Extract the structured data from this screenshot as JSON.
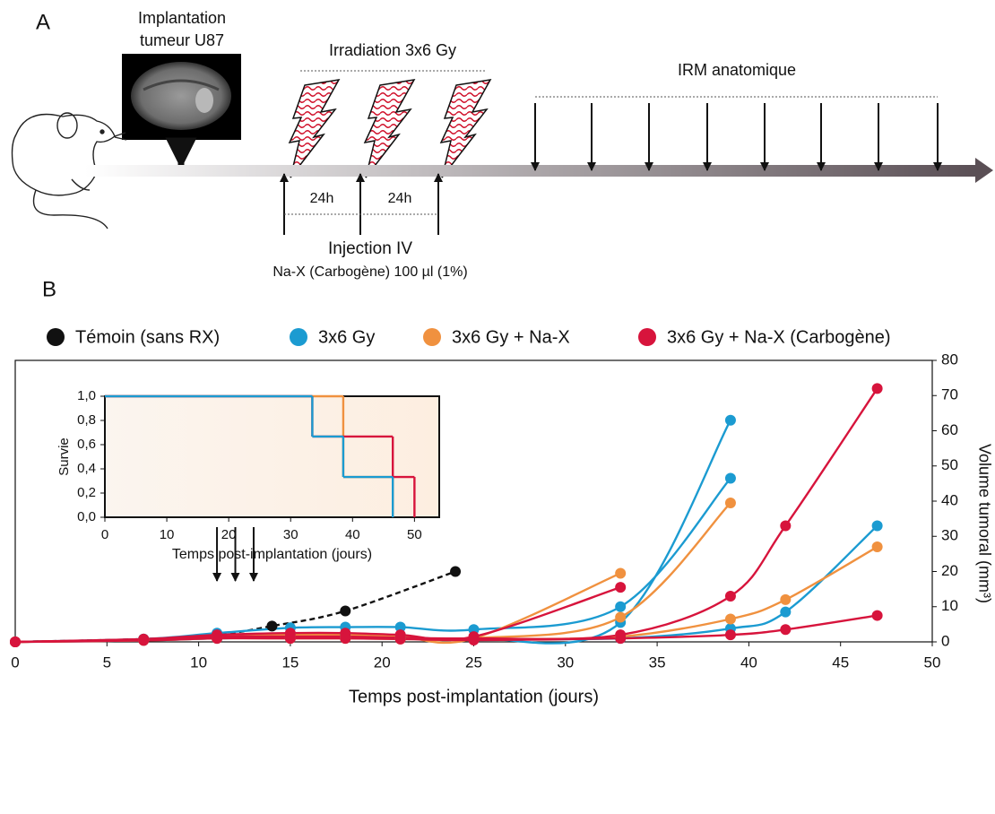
{
  "panel_a": {
    "label": "A",
    "implant_title": [
      "Implantation",
      "tumeur U87"
    ],
    "irradiation": "Irradiation 3x6 Gy",
    "mri": "IRM anatomique",
    "interval_1": "24h",
    "interval_2": "24h",
    "injection_title": "Injection IV",
    "injection_detail": "Na-X (Carbogène) 100 µl (1%)"
  },
  "panel_b_label": "B",
  "chart_data": [
    {
      "type": "line",
      "xlabel": "Temps post-implantation (jours)",
      "ylabel": "Volume tumoral (mm³)",
      "y_axis_side": "right",
      "xlim": [
        0,
        50
      ],
      "xticks": [
        0,
        5,
        10,
        15,
        20,
        25,
        30,
        35,
        40,
        45,
        50
      ],
      "ylim": [
        0,
        80
      ],
      "yticks": [
        0,
        10,
        20,
        30,
        40,
        50,
        60,
        70,
        80
      ],
      "arrows_x": [
        11,
        12,
        13
      ],
      "series": [
        {
          "name": "Témoin (sans RX)",
          "color": "#111111",
          "line_style": "dashed",
          "curves": [
            {
              "x": [
                0,
                7,
                11,
                14,
                18,
                24
              ],
              "values": [
                0,
                0.8,
                2,
                4.5,
                8.8,
                20
              ]
            }
          ]
        },
        {
          "name": "3x6 Gy",
          "color": "#1b9bd1",
          "line_style": "solid",
          "curves": [
            {
              "x": [
                0,
                7,
                11,
                15,
                18,
                21,
                25,
                33,
                39
              ],
              "values": [
                0,
                0.8,
                2.5,
                4,
                4.2,
                4.2,
                3.5,
                10,
                46.5
              ]
            },
            {
              "x": [
                0,
                7,
                11,
                15,
                18,
                21,
                25,
                33,
                39
              ],
              "values": [
                0,
                0.6,
                1.5,
                2,
                2,
                1.5,
                1,
                5.5,
                63
              ]
            },
            {
              "x": [
                0,
                7,
                11,
                15,
                18,
                21,
                25,
                33,
                39,
                42,
                47
              ],
              "values": [
                0,
                0.4,
                1,
                1.2,
                1.2,
                1,
                0.8,
                1,
                3.8,
                8.5,
                33
              ]
            }
          ]
        },
        {
          "name": "3x6 Gy + Na-X",
          "color": "#f0913f",
          "line_style": "solid",
          "curves": [
            {
              "x": [
                0,
                7,
                11,
                15,
                18,
                21,
                25,
                33
              ],
              "values": [
                0,
                0.6,
                1.5,
                2,
                2,
                1.5,
                1,
                19.5
              ]
            },
            {
              "x": [
                0,
                7,
                11,
                15,
                18,
                21,
                25,
                33,
                39
              ],
              "values": [
                0,
                0.5,
                1.5,
                1.5,
                1.5,
                1,
                1,
                7,
                39.5
              ]
            },
            {
              "x": [
                0,
                7,
                11,
                15,
                18,
                21,
                25,
                33,
                39,
                42,
                47
              ],
              "values": [
                0,
                0.4,
                1,
                1,
                1,
                0.8,
                0.8,
                1.5,
                6.5,
                12,
                27
              ]
            }
          ]
        },
        {
          "name": "3x6 Gy + Na-X (Carbogène)",
          "color": "#d7143c",
          "line_style": "solid",
          "curves": [
            {
              "x": [
                0,
                7,
                11,
                15,
                18,
                21,
                25,
                33
              ],
              "values": [
                0,
                0.8,
                2,
                2.5,
                2.5,
                2,
                1.5,
                15.5
              ]
            },
            {
              "x": [
                0,
                7,
                11,
                15,
                18,
                21,
                25,
                33,
                39,
                42,
                47
              ],
              "values": [
                0,
                0.6,
                1.5,
                1.5,
                1.5,
                1.2,
                1,
                2,
                13,
                33,
                72
              ]
            },
            {
              "x": [
                0,
                7,
                11,
                15,
                18,
                21,
                25,
                33,
                39,
                42,
                47
              ],
              "values": [
                0,
                0.4,
                1,
                1,
                1,
                0.8,
                0.5,
                1,
                2,
                3.5,
                7.5
              ]
            }
          ]
        }
      ]
    },
    {
      "type": "step",
      "xlabel": "Temps post-implantation (jours)",
      "ylabel": "Survie",
      "y_axis_side": "left",
      "xlim": [
        0,
        54
      ],
      "xticks": [
        0,
        10,
        20,
        30,
        40,
        50
      ],
      "ylim": [
        0,
        1
      ],
      "yticks": [
        {
          "value": 0,
          "label": "0,0"
        },
        {
          "value": 0.2,
          "label": "0,2"
        },
        {
          "value": 0.4,
          "label": "0,4"
        },
        {
          "value": 0.6,
          "label": "0,6"
        },
        {
          "value": 0.8,
          "label": "0,8"
        },
        {
          "value": 1,
          "label": "1,0"
        }
      ],
      "series": [
        {
          "color": "#f0913f",
          "x": [
            0,
            38.5,
            46.5
          ],
          "values": [
            1,
            0.333,
            0
          ]
        },
        {
          "color": "#d7143c",
          "x": [
            0,
            33.5,
            46.5,
            50
          ],
          "values": [
            1,
            0.667,
            0.333,
            0
          ]
        },
        {
          "color": "#1b9bd1",
          "x": [
            0,
            33.5,
            38.5,
            46.5
          ],
          "values": [
            1,
            0.667,
            0.333,
            0
          ]
        }
      ]
    }
  ]
}
